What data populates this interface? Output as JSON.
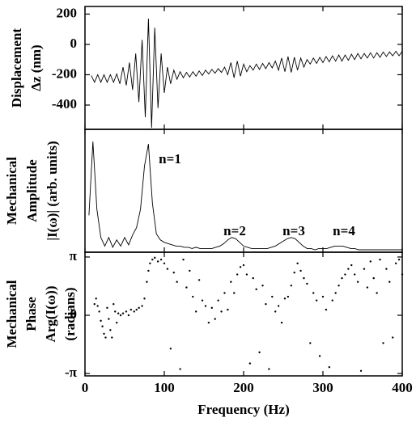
{
  "chart_data": [
    {
      "type": "line",
      "ylabel": [
        "Displacement",
        "Δz (nm)"
      ],
      "xlim": [
        0,
        400
      ],
      "ylim": [
        -560,
        250
      ],
      "yticks": [
        200,
        0,
        -200,
        -400
      ],
      "color": "#000000",
      "x": [
        8,
        12,
        16,
        20,
        24,
        28,
        32,
        36,
        40,
        44,
        48,
        52,
        56,
        60,
        64,
        68,
        72,
        76,
        80,
        84,
        88,
        92,
        96,
        100,
        104,
        108,
        112,
        116,
        120,
        124,
        128,
        132,
        136,
        140,
        144,
        148,
        152,
        156,
        160,
        164,
        168,
        172,
        176,
        180,
        184,
        188,
        192,
        196,
        200,
        204,
        208,
        212,
        216,
        220,
        224,
        228,
        232,
        236,
        240,
        244,
        248,
        252,
        256,
        260,
        264,
        268,
        272,
        276,
        280,
        284,
        288,
        292,
        296,
        300,
        304,
        308,
        312,
        316,
        320,
        324,
        328,
        332,
        336,
        340,
        344,
        348,
        352,
        356,
        360,
        364,
        368,
        372,
        376,
        380,
        384,
        388,
        392,
        396,
        400
      ],
      "values": [
        -205,
        -250,
        -200,
        -250,
        -200,
        -250,
        -200,
        -250,
        -195,
        -260,
        -150,
        -270,
        -120,
        -300,
        -60,
        -380,
        30,
        -480,
        170,
        -550,
        110,
        -420,
        -60,
        -320,
        -150,
        -260,
        -170,
        -230,
        -180,
        -220,
        -185,
        -215,
        -180,
        -210,
        -175,
        -205,
        -170,
        -195,
        -165,
        -190,
        -160,
        -185,
        -150,
        -200,
        -120,
        -220,
        -110,
        -210,
        -130,
        -180,
        -140,
        -170,
        -130,
        -165,
        -125,
        -160,
        -120,
        -155,
        -110,
        -170,
        -90,
        -180,
        -80,
        -185,
        -85,
        -170,
        -90,
        -150,
        -100,
        -130,
        -90,
        -125,
        -85,
        -120,
        -80,
        -115,
        -75,
        -110,
        -70,
        -110,
        -70,
        -105,
        -65,
        -100,
        -60,
        -95,
        -60,
        -90,
        -55,
        -90,
        -55,
        -85,
        -50,
        -80,
        -50,
        -75,
        -45,
        -75,
        -45
      ]
    },
    {
      "type": "line",
      "ylabel": [
        "Mechanical",
        "Amplitude",
        "|I(ω)| (arb. units)"
      ],
      "xlim": [
        0,
        400
      ],
      "ylim": [
        0,
        1
      ],
      "color": "#000000",
      "annotations": [
        "n=1",
        "n=2",
        "n=3",
        "n=4"
      ],
      "x": [
        5,
        10,
        15,
        20,
        25,
        30,
        35,
        40,
        45,
        50,
        55,
        60,
        65,
        70,
        75,
        80,
        85,
        90,
        95,
        100,
        105,
        110,
        115,
        120,
        125,
        130,
        135,
        140,
        145,
        150,
        155,
        160,
        165,
        170,
        175,
        180,
        185,
        190,
        195,
        200,
        205,
        210,
        215,
        220,
        225,
        230,
        235,
        240,
        245,
        250,
        255,
        260,
        265,
        270,
        275,
        280,
        285,
        290,
        295,
        300,
        305,
        310,
        315,
        320,
        325,
        330,
        335,
        340,
        345,
        350,
        355,
        360,
        365,
        370,
        375,
        380,
        385,
        390,
        395,
        400
      ],
      "values": [
        0.3,
        0.9,
        0.35,
        0.12,
        0.05,
        0.12,
        0.04,
        0.1,
        0.05,
        0.12,
        0.06,
        0.14,
        0.2,
        0.35,
        0.7,
        0.88,
        0.4,
        0.15,
        0.1,
        0.08,
        0.07,
        0.06,
        0.05,
        0.05,
        0.04,
        0.04,
        0.03,
        0.04,
        0.03,
        0.03,
        0.03,
        0.03,
        0.04,
        0.05,
        0.07,
        0.1,
        0.12,
        0.11,
        0.08,
        0.05,
        0.04,
        0.03,
        0.03,
        0.03,
        0.03,
        0.03,
        0.04,
        0.05,
        0.07,
        0.09,
        0.11,
        0.12,
        0.11,
        0.08,
        0.05,
        0.03,
        0.03,
        0.02,
        0.03,
        0.03,
        0.03,
        0.04,
        0.05,
        0.05,
        0.05,
        0.04,
        0.03,
        0.03,
        0.02,
        0.02,
        0.02,
        0.02,
        0.02,
        0.02,
        0.02,
        0.02,
        0.02,
        0.02,
        0.02,
        0.02
      ]
    },
    {
      "type": "scatter",
      "ylabel": [
        "Mechanical",
        "Phase",
        "Arg(I(ω))",
        "(radians)"
      ],
      "xlabel": "Frequency (Hz)",
      "xlim": [
        0,
        400
      ],
      "xticks": [
        0,
        100,
        200,
        300,
        400
      ],
      "ylim": [
        -3.27,
        3.4
      ],
      "yticks": [
        {
          "value": 3.14159,
          "label": "π"
        },
        0,
        {
          "value": -3.14159,
          "label": "-π"
        }
      ],
      "color": "#000000",
      "x": [
        12,
        14,
        16,
        18,
        20,
        22,
        24,
        26,
        28,
        30,
        32,
        34,
        36,
        38,
        40,
        42,
        45,
        48,
        52,
        55,
        58,
        62,
        65,
        68,
        72,
        75,
        78,
        80,
        82,
        85,
        88,
        92,
        96,
        100,
        104,
        108,
        112,
        116,
        120,
        124,
        128,
        132,
        136,
        140,
        144,
        148,
        152,
        156,
        160,
        164,
        168,
        172,
        176,
        180,
        184,
        188,
        192,
        196,
        200,
        204,
        208,
        212,
        216,
        220,
        224,
        228,
        232,
        236,
        240,
        244,
        248,
        252,
        256,
        260,
        264,
        268,
        272,
        276,
        280,
        284,
        288,
        292,
        296,
        300,
        304,
        308,
        312,
        316,
        320,
        324,
        328,
        332,
        336,
        340,
        344,
        348,
        352,
        356,
        360,
        364,
        368,
        372,
        376,
        380,
        384,
        388,
        392,
        396,
        400
      ],
      "values": [
        0.6,
        0.9,
        0.5,
        0.2,
        -0.3,
        -0.6,
        -1.0,
        -1.2,
        0.4,
        -0.2,
        -0.8,
        -1.2,
        0.6,
        0.2,
        -0.4,
        0.1,
        0.0,
        0.1,
        0.2,
        0.0,
        0.3,
        0.2,
        0.3,
        0.4,
        0.5,
        0.9,
        1.8,
        2.4,
        2.8,
        3.0,
        3.1,
        2.9,
        3.0,
        2.8,
        2.5,
        -1.8,
        2.3,
        1.8,
        -2.9,
        3.0,
        1.5,
        2.4,
        1.0,
        0.2,
        1.9,
        0.8,
        0.5,
        -0.4,
        0.4,
        -0.2,
        0.8,
        0.2,
        1.2,
        0.3,
        1.8,
        1.2,
        2.2,
        2.6,
        2.7,
        2.2,
        -2.6,
        2.0,
        1.4,
        -2.0,
        1.6,
        0.6,
        -2.9,
        1.0,
        0.2,
        0.5,
        -0.4,
        0.9,
        1.0,
        1.6,
        2.3,
        2.8,
        2.4,
        2.0,
        1.7,
        -1.5,
        1.2,
        0.8,
        -2.2,
        1.0,
        0.3,
        -2.8,
        0.8,
        1.2,
        1.6,
        2.0,
        2.2,
        2.5,
        2.7,
        2.2,
        1.8,
        -3.0,
        2.5,
        1.5,
        2.9,
        2.0,
        1.2,
        3.0,
        -1.5,
        2.5,
        1.8,
        -1.2,
        2.8,
        3.0,
        2.2
      ]
    }
  ]
}
